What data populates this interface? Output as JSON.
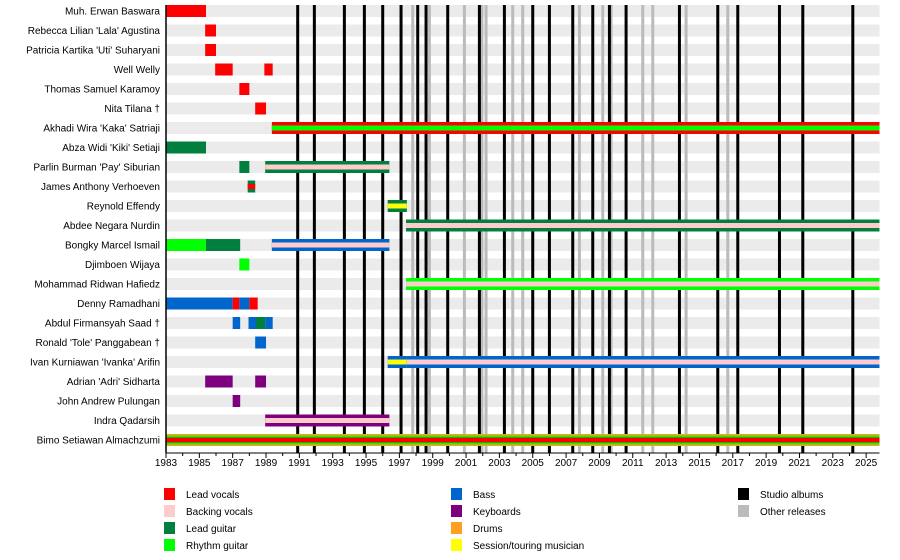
{
  "chart_data": {
    "type": "timeline",
    "xlim": [
      1983,
      2025.8
    ],
    "x_ticks": [
      1983,
      1985,
      1987,
      1989,
      1991,
      1993,
      1995,
      1997,
      1999,
      2001,
      2003,
      2005,
      2007,
      2009,
      2011,
      2013,
      2015,
      2017,
      2019,
      2021,
      2023,
      2025
    ],
    "roles": {
      "lead_vocals": {
        "label": "Lead vocals",
        "color": "#ff0000"
      },
      "backing_vocals": {
        "label": "Backing vocals",
        "color": "#ffcccc"
      },
      "lead_guitar": {
        "label": "Lead guitar",
        "color": "#007f3f"
      },
      "rhythm_guitar": {
        "label": "Rhythm guitar",
        "color": "#00ff00"
      },
      "bass": {
        "label": "Bass",
        "color": "#0066cc"
      },
      "keyboards": {
        "label": "Keyboards",
        "color": "#7f007f"
      },
      "drums": {
        "label": "Drums",
        "color": "#ff9f1f"
      },
      "session": {
        "label": "Session/touring musician",
        "color": "#ffff00"
      }
    },
    "legend_roles": [
      [
        "lead_vocals",
        "backing_vocals",
        "lead_guitar",
        "rhythm_guitar"
      ],
      [
        "bass",
        "keyboards",
        "drums",
        "session"
      ]
    ],
    "release_legend": [
      {
        "label": "Studio albums",
        "color": "#000000"
      },
      {
        "label": "Other releases",
        "color": "#bbbbbb"
      }
    ],
    "studio_albums": [
      1990.9,
      1991.9,
      1993.7,
      1994.9,
      1996.0,
      1997.1,
      1998.1,
      1998.6,
      1999.9,
      2001.8,
      2003.3,
      2005.0,
      2006.0,
      2007.4,
      2008.6,
      2009.6,
      2010.6,
      2013.8,
      2016.1,
      2017.3,
      2019.8,
      2021.2,
      2024.2
    ],
    "other_releases": [
      1997.8,
      1998.8,
      2000.9,
      2001.95,
      2002.2,
      2003.8,
      2004.4,
      2007.8,
      2009.2,
      2009.7,
      2011.6,
      2012.2,
      2014.2,
      2016.7
    ],
    "members": [
      {
        "name": "Muh. Erwan Baswara",
        "segments": [
          {
            "from": 1983,
            "to": 1985.4,
            "layers": [
              "lead_vocals"
            ]
          }
        ]
      },
      {
        "name": "Rebecca Lilian 'Lala' Agustina",
        "segments": [
          {
            "from": 1985.35,
            "to": 1986.0,
            "layers": [
              "lead_vocals"
            ]
          }
        ]
      },
      {
        "name": "Patricia Kartika 'Uti' Suharyani",
        "segments": [
          {
            "from": 1985.35,
            "to": 1986.0,
            "layers": [
              "lead_vocals"
            ]
          }
        ]
      },
      {
        "name": "Well Welly",
        "segments": [
          {
            "from": 1985.95,
            "to": 1987.0,
            "layers": [
              "lead_vocals"
            ]
          },
          {
            "from": 1988.9,
            "to": 1989.4,
            "layers": [
              "lead_vocals"
            ]
          }
        ]
      },
      {
        "name": "Thomas Samuel Karamoy",
        "segments": [
          {
            "from": 1987.4,
            "to": 1988.0,
            "layers": [
              "lead_vocals"
            ]
          }
        ]
      },
      {
        "name": "Nita Tilana †",
        "segments": [
          {
            "from": 1988.35,
            "to": 1989.0,
            "layers": [
              "lead_vocals"
            ]
          }
        ]
      },
      {
        "name": "Akhadi Wira 'Kaka' Satriaji",
        "segments": [
          {
            "from": 1989.35,
            "to": 2025.8,
            "layers": [
              "lead_vocals",
              "rhythm_guitar"
            ]
          }
        ]
      },
      {
        "name": "Abza Widi 'Kiki' Setiaji",
        "segments": [
          {
            "from": 1983,
            "to": 1985.4,
            "layers": [
              "lead_guitar"
            ]
          }
        ]
      },
      {
        "name": "Parlin Burman 'Pay' Siburian",
        "segments": [
          {
            "from": 1987.4,
            "to": 1988.0,
            "layers": [
              "lead_guitar"
            ]
          },
          {
            "from": 1988.95,
            "to": 1996.4,
            "layers": [
              "lead_guitar",
              "backing_vocals"
            ]
          }
        ]
      },
      {
        "name": "James Anthony Verhoeven",
        "segments": [
          {
            "from": 1987.9,
            "to": 1988.35,
            "layers": [
              "lead_guitar",
              "lead_vocals"
            ]
          }
        ]
      },
      {
        "name": "Reynold Effendy",
        "segments": [
          {
            "from": 1996.3,
            "to": 1997.45,
            "layers": [
              "lead_guitar",
              "session"
            ]
          }
        ]
      },
      {
        "name": "Abdee Negara Nurdin",
        "segments": [
          {
            "from": 1997.4,
            "to": 2025.8,
            "layers": [
              "lead_guitar",
              "backing_vocals"
            ]
          }
        ]
      },
      {
        "name": "Bongky Marcel Ismail",
        "segments": [
          {
            "from": 1983,
            "to": 1985.4,
            "layers": [
              "rhythm_guitar"
            ]
          },
          {
            "from": 1985.4,
            "to": 1987.45,
            "layers": [
              "lead_guitar"
            ]
          },
          {
            "from": 1989.35,
            "to": 1996.4,
            "layers": [
              "bass",
              "backing_vocals"
            ]
          }
        ]
      },
      {
        "name": "Djimboen Wijaya",
        "segments": [
          {
            "from": 1987.4,
            "to": 1988.0,
            "layers": [
              "rhythm_guitar"
            ]
          }
        ]
      },
      {
        "name": "Mohammad Ridwan Hafiedz",
        "segments": [
          {
            "from": 1997.4,
            "to": 2025.8,
            "layers": [
              "rhythm_guitar",
              "backing_vocals"
            ]
          }
        ]
      },
      {
        "name": "Denny Ramadhani",
        "segments": [
          {
            "from": 1983,
            "to": 1987.0,
            "layers": [
              "bass"
            ]
          },
          {
            "from": 1987.0,
            "to": 1987.4,
            "layers": [
              "lead_vocals"
            ]
          },
          {
            "from": 1987.4,
            "to": 1988.0,
            "layers": [
              "bass"
            ]
          },
          {
            "from": 1988.0,
            "to": 1988.5,
            "layers": [
              "lead_vocals"
            ]
          }
        ]
      },
      {
        "name": "Abdul Firmansyah Saad †",
        "segments": [
          {
            "from": 1987.0,
            "to": 1987.45,
            "layers": [
              "bass"
            ]
          },
          {
            "from": 1987.95,
            "to": 1988.4,
            "layers": [
              "bass"
            ]
          },
          {
            "from": 1988.4,
            "to": 1988.95,
            "layers": [
              "lead_guitar"
            ]
          },
          {
            "from": 1988.95,
            "to": 1989.4,
            "layers": [
              "bass"
            ]
          }
        ]
      },
      {
        "name": "Ronald 'Tole' Panggabean †",
        "segments": [
          {
            "from": 1988.35,
            "to": 1989.0,
            "layers": [
              "bass"
            ]
          }
        ]
      },
      {
        "name": "Ivan Kurniawan 'Ivanka' Arifin",
        "segments": [
          {
            "from": 1996.3,
            "to": 1997.45,
            "layers": [
              "bass",
              "session"
            ]
          },
          {
            "from": 1997.45,
            "to": 2025.8,
            "layers": [
              "bass",
              "backing_vocals"
            ]
          }
        ]
      },
      {
        "name": "Adrian 'Adri' Sidharta",
        "segments": [
          {
            "from": 1985.35,
            "to": 1987.0,
            "layers": [
              "keyboards"
            ]
          },
          {
            "from": 1988.35,
            "to": 1989.0,
            "layers": [
              "keyboards"
            ]
          }
        ]
      },
      {
        "name": "John Andrew Pulungan",
        "segments": [
          {
            "from": 1987.0,
            "to": 1987.45,
            "layers": [
              "keyboards"
            ]
          }
        ]
      },
      {
        "name": "Indra Qadarsih",
        "segments": [
          {
            "from": 1988.95,
            "to": 1996.4,
            "layers": [
              "keyboards",
              "backing_vocals"
            ]
          }
        ]
      },
      {
        "name": "Bimo Setiawan Almachzumi",
        "segments": [
          {
            "from": 1983,
            "to": 2025.8,
            "layers": [
              "drums",
              "rhythm_guitar",
              "lead_vocals"
            ]
          }
        ]
      }
    ]
  }
}
